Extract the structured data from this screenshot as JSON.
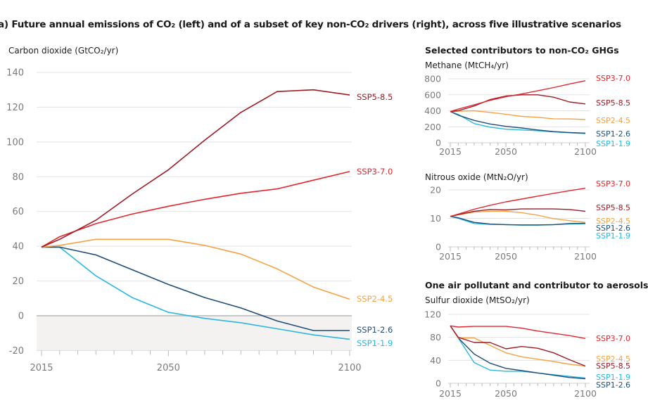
{
  "figure_title": "a) Future annual emissions of CO₂ (left) and of a subset of key non-CO₂ drivers (right), across five illustrative scenarios",
  "colors": {
    "SSP5-8.5": "#9e1b24",
    "SSP3-7.0": "#e1262d",
    "SSP2-4.5": "#f5a244",
    "SSP1-2.6": "#1f4e79",
    "SSP1-1.9": "#2ab7e0",
    "grid": "#e3e3e3",
    "zero_line": "#c7c7c7",
    "negative_band": "#f3f2f1",
    "tick_text": "#7a7a7a"
  },
  "right_headers": {
    "ghg": "Selected contributors to non-CO₂ GHGs",
    "aerosol": "One air pollutant and contributor to aerosols"
  },
  "chart_data": [
    {
      "id": "co2",
      "type": "line",
      "title": "Carbon dioxide (GtCO₂/yr)",
      "xlabel": "",
      "ylabel": "Carbon dioxide (GtCO₂/yr)",
      "xlim": [
        2015,
        2100
      ],
      "ylim": [
        -20,
        140
      ],
      "yticks": [
        -20,
        0,
        20,
        40,
        60,
        80,
        100,
        120,
        140
      ],
      "xtick_labels": [
        "2015",
        "2050",
        "2100"
      ],
      "minor_xtick_step": 5,
      "negative_region_shaded": true,
      "grid": true,
      "x": [
        2015,
        2020,
        2030,
        2040,
        2050,
        2060,
        2070,
        2080,
        2090,
        2100
      ],
      "series": [
        {
          "name": "SSP5-8.5",
          "values": [
            39.5,
            44,
            55,
            70,
            84,
            101,
            117,
            129,
            130,
            127
          ]
        },
        {
          "name": "SSP3-7.0",
          "values": [
            39.5,
            45.5,
            53,
            58.5,
            63,
            67,
            70.5,
            73,
            78,
            83
          ]
        },
        {
          "name": "SSP2-4.5",
          "values": [
            39.5,
            40.5,
            44,
            44,
            44,
            40.5,
            35.5,
            27,
            16.5,
            9.5
          ]
        },
        {
          "name": "SSP1-2.6",
          "values": [
            39.5,
            39.5,
            35,
            26.5,
            18,
            10.5,
            4.5,
            -3,
            -8.5,
            -8.5
          ]
        },
        {
          "name": "SSP1-1.9",
          "values": [
            39.5,
            39.5,
            23,
            10.5,
            2,
            -1.5,
            -4,
            -7.5,
            -11,
            -13.5
          ]
        }
      ],
      "legend_order": [
        "SSP5-8.5",
        "SSP3-7.0",
        "SSP2-4.5",
        "SSP1-2.6",
        "SSP1-1.9"
      ],
      "legend_placement": "right, at line ends"
    },
    {
      "id": "methane",
      "type": "line",
      "title": "Methane (MtCH₄/yr)",
      "ylabel": "Methane (MtCH₄/yr)",
      "xlim": [
        2015,
        2100
      ],
      "ylim": [
        0,
        800
      ],
      "yticks": [
        0,
        200,
        400,
        600,
        800
      ],
      "xtick_labels": [
        "2015",
        "2050",
        "2100"
      ],
      "grid": true,
      "x": [
        2015,
        2020,
        2030,
        2040,
        2050,
        2060,
        2070,
        2080,
        2090,
        2100
      ],
      "series": [
        {
          "name": "SSP3-7.0",
          "values": [
            390,
            420,
            475,
            530,
            575,
            610,
            650,
            690,
            735,
            775
          ]
        },
        {
          "name": "SSP5-8.5",
          "values": [
            390,
            400,
            460,
            540,
            585,
            600,
            600,
            570,
            510,
            485
          ]
        },
        {
          "name": "SSP2-4.5",
          "values": [
            390,
            395,
            400,
            380,
            355,
            330,
            318,
            300,
            298,
            290
          ]
        },
        {
          "name": "SSP1-2.6",
          "values": [
            390,
            345,
            280,
            235,
            205,
            185,
            160,
            140,
            128,
            120
          ]
        },
        {
          "name": "SSP1-1.9",
          "values": [
            390,
            355,
            240,
            195,
            170,
            160,
            150,
            135,
            125,
            115
          ]
        }
      ],
      "legend_order": [
        "SSP3-7.0",
        "SSP5-8.5",
        "SSP2-4.5",
        "SSP1-2.6",
        "SSP1-1.9"
      ],
      "legend_placement": "right"
    },
    {
      "id": "n2o",
      "type": "line",
      "title": "Nitrous oxide (MtN₂O/yr)",
      "ylabel": "Nitrous oxide (MtN₂O/yr)",
      "xlim": [
        2015,
        2100
      ],
      "ylim": [
        0,
        20
      ],
      "yticks": [
        0,
        10,
        20
      ],
      "xtick_labels": [
        "2015",
        "2050",
        "2100"
      ],
      "grid": true,
      "x": [
        2015,
        2020,
        2030,
        2040,
        2050,
        2060,
        2070,
        2080,
        2090,
        2100
      ],
      "series": [
        {
          "name": "SSP3-7.0",
          "values": [
            10.7,
            11.5,
            13.2,
            14.6,
            15.8,
            16.8,
            17.8,
            18.8,
            19.7,
            20.6
          ]
        },
        {
          "name": "SSP5-8.5",
          "values": [
            10.7,
            11.3,
            12.5,
            13.1,
            13.0,
            13.3,
            13.3,
            13.3,
            13.1,
            12.5
          ]
        },
        {
          "name": "SSP2-4.5",
          "values": [
            10.7,
            11.2,
            12.2,
            12.5,
            12.5,
            12.0,
            11.1,
            9.9,
            9.2,
            8.6
          ]
        },
        {
          "name": "SSP1-2.6",
          "values": [
            10.7,
            10.2,
            8.6,
            8.0,
            7.8,
            7.7,
            7.7,
            7.8,
            8.2,
            8.3
          ]
        },
        {
          "name": "SSP1-1.9",
          "values": [
            10.7,
            10.0,
            8.2,
            7.9,
            7.8,
            7.6,
            7.6,
            7.8,
            8.0,
            8.1
          ]
        }
      ],
      "legend_order": [
        "SSP3-7.0",
        "SSP5-8.5",
        "SSP2-4.5",
        "SSP1-2.6",
        "SSP1-1.9"
      ],
      "legend_placement": "right"
    },
    {
      "id": "so2",
      "type": "line",
      "title": "Sulfur dioxide (MtSO₂/yr)",
      "ylabel": "Sulfur dioxide (MtSO₂/yr)",
      "xlim": [
        2015,
        2100
      ],
      "ylim": [
        0,
        120
      ],
      "yticks": [
        0,
        40,
        80,
        120
      ],
      "xtick_labels": [
        "2015",
        "2050",
        "2100"
      ],
      "grid": true,
      "x": [
        2015,
        2020,
        2030,
        2040,
        2050,
        2060,
        2070,
        2080,
        2090,
        2100
      ],
      "series": [
        {
          "name": "SSP3-7.0",
          "values": [
            100,
            98,
            99,
            99,
            99,
            96,
            91,
            87,
            83,
            78
          ]
        },
        {
          "name": "SSP5-8.5",
          "values": [
            100,
            80,
            71,
            71,
            60,
            64,
            61,
            53,
            41,
            30
          ]
        },
        {
          "name": "SSP2-4.5",
          "values": [
            100,
            79,
            79,
            66,
            53,
            46,
            42,
            38,
            33,
            30
          ]
        },
        {
          "name": "SSP1-2.6",
          "values": [
            100,
            79,
            51,
            35,
            26,
            22,
            18,
            14,
            10,
            8
          ]
        },
        {
          "name": "SSP1-1.9",
          "values": [
            100,
            79,
            36,
            23,
            21,
            21,
            18,
            15,
            12,
            9
          ]
        }
      ],
      "legend_order": [
        "SSP3-7.0",
        "SSP2-4.5",
        "SSP5-8.5",
        "SSP1-1.9",
        "SSP1-2.6"
      ],
      "legend_placement": "right"
    }
  ]
}
